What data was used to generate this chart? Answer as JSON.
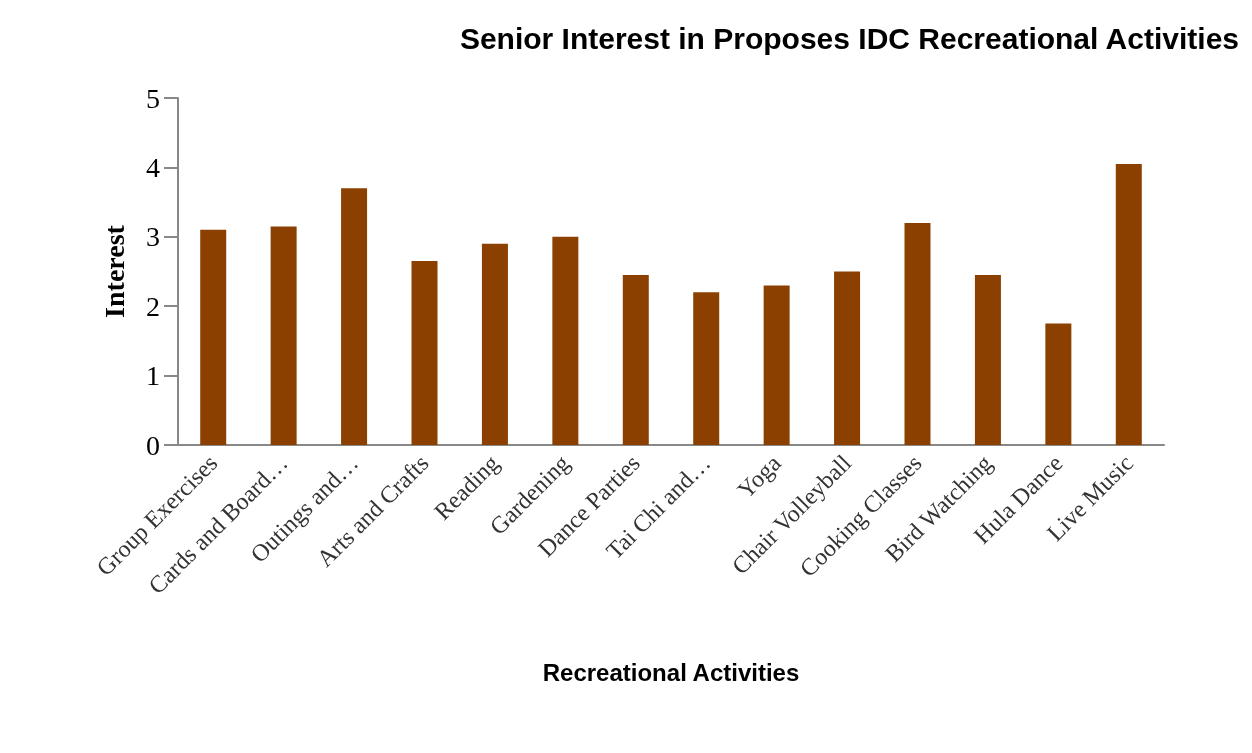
{
  "chart_data": {
    "type": "bar",
    "title": "Senior Interest in Proposes IDC Recreational Activities",
    "xlabel": "Recreational Activities",
    "ylabel": "Interest",
    "categories": [
      "Group Exercises",
      "Cards and Board…",
      "Outings and…",
      "Arts and Crafts",
      "Reading",
      "Gardening",
      "Dance Parties",
      "Tai Chi and…",
      "Yoga",
      "Chair Volleyball",
      "Cooking Classes",
      "Bird Watching",
      "Hula Dance",
      "Live Music"
    ],
    "values": [
      3.1,
      3.15,
      3.7,
      2.65,
      2.9,
      3.0,
      2.45,
      2.2,
      2.3,
      2.5,
      3.2,
      2.45,
      1.75,
      4.05
    ],
    "color": "#8b4000",
    "ylim": [
      0,
      5
    ],
    "yticks": [
      0,
      1,
      2,
      3,
      4,
      5
    ],
    "grid": false
  }
}
